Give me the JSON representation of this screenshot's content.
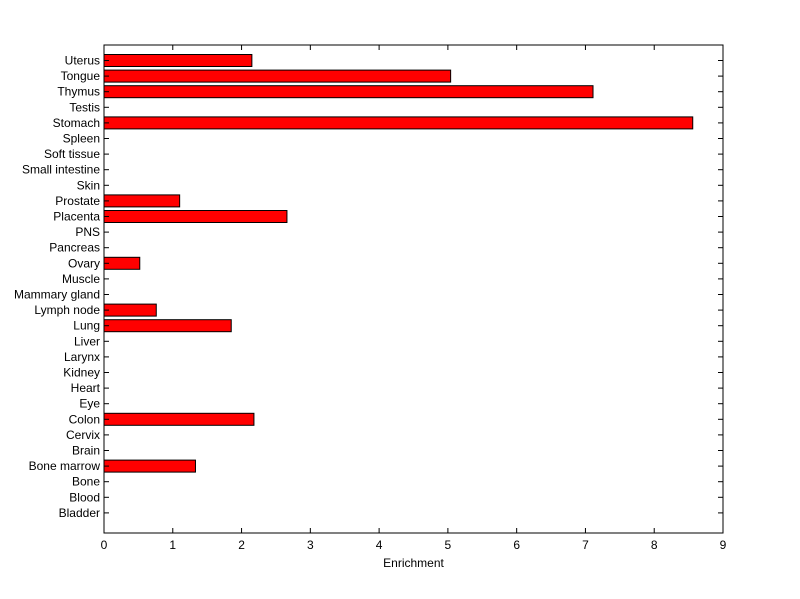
{
  "chart_data": {
    "type": "bar",
    "orientation": "horizontal",
    "title": "",
    "xlabel": "Enrichment",
    "ylabel": "",
    "xlim": [
      0,
      9
    ],
    "x_ticks": [
      0,
      1,
      2,
      3,
      4,
      5,
      6,
      7,
      8,
      9
    ],
    "grid": false,
    "bar_color": "#ff0000",
    "categories": [
      "Uterus",
      "Tongue",
      "Thymus",
      "Testis",
      "Stomach",
      "Spleen",
      "Soft tissue",
      "Small intestine",
      "Skin",
      "Prostate",
      "Placenta",
      "PNS",
      "Pancreas",
      "Ovary",
      "Muscle",
      "Mammary gland",
      "Lymph node",
      "Lung",
      "Liver",
      "Larynx",
      "Kidney",
      "Heart",
      "Eye",
      "Colon",
      "Cervix",
      "Brain",
      "Bone marrow",
      "Bone",
      "Blood",
      "Bladder"
    ],
    "values": [
      2.15,
      5.04,
      7.11,
      0,
      8.56,
      0,
      0,
      0,
      0,
      1.1,
      2.66,
      0,
      0,
      0.52,
      0,
      0,
      0.76,
      1.85,
      0,
      0,
      0,
      0,
      0,
      2.18,
      0,
      0,
      1.33,
      0,
      0,
      0
    ]
  }
}
